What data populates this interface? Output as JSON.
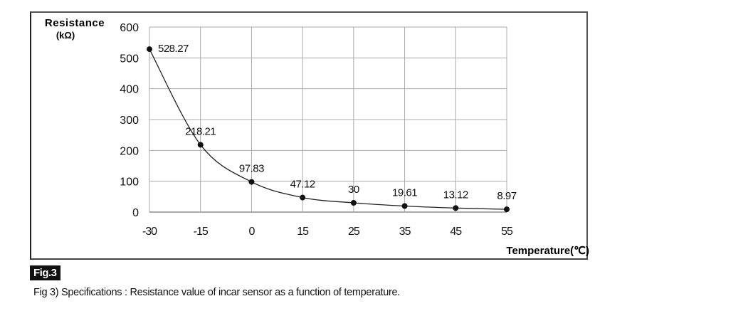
{
  "chart_data": {
    "type": "line",
    "categories": [
      "-30",
      "-15",
      "0",
      "15",
      "25",
      "35",
      "45",
      "55"
    ],
    "series": [
      {
        "values": [
          528.27,
          218.21,
          97.83,
          47.12,
          30,
          19.61,
          13.12,
          8.97
        ],
        "labels": [
          "528.27",
          "218.21",
          "97.83",
          "47.12",
          "30",
          "19.61",
          "13.12",
          "8.97"
        ]
      }
    ],
    "ylabel": "Resistance",
    "yunit": "(kΩ)",
    "xlabel": "Temperature(℃)",
    "ylim": [
      0,
      600
    ],
    "yticks": [
      0,
      100,
      200,
      300,
      400,
      500,
      600
    ],
    "grid": true,
    "line_color": "#222222"
  },
  "figure_badge": "Fig.3",
  "caption": "Fig 3) Specifications : Resistance value of incar sensor as a function of temperature."
}
